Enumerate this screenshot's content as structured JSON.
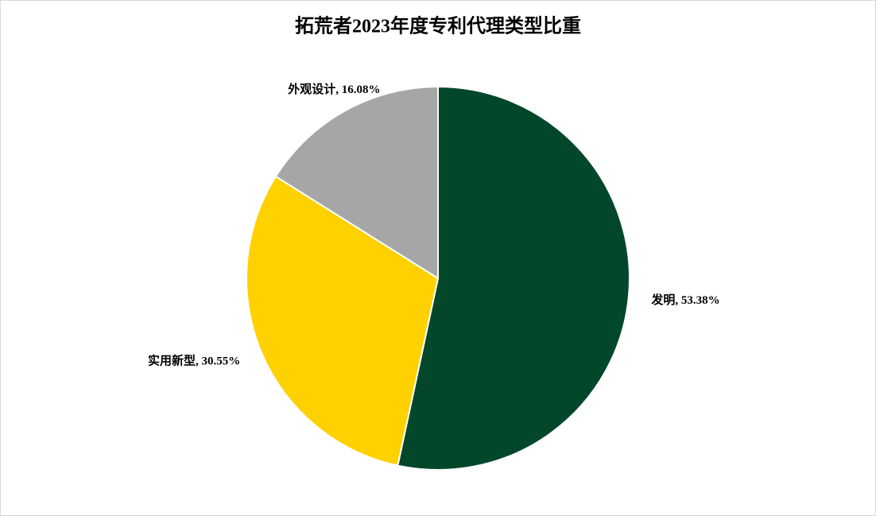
{
  "chart_data": {
    "type": "pie",
    "title": "拓荒者2023年度专利代理类型比重",
    "values": [
      53.38,
      30.55,
      16.08
    ],
    "value_labels": [
      "发明, 53.38%",
      "实用新型, 30.55%",
      "外观设计, 16.08%"
    ],
    "colors": [
      "#03472b",
      "#ffd100",
      "#a6a6a6"
    ]
  }
}
